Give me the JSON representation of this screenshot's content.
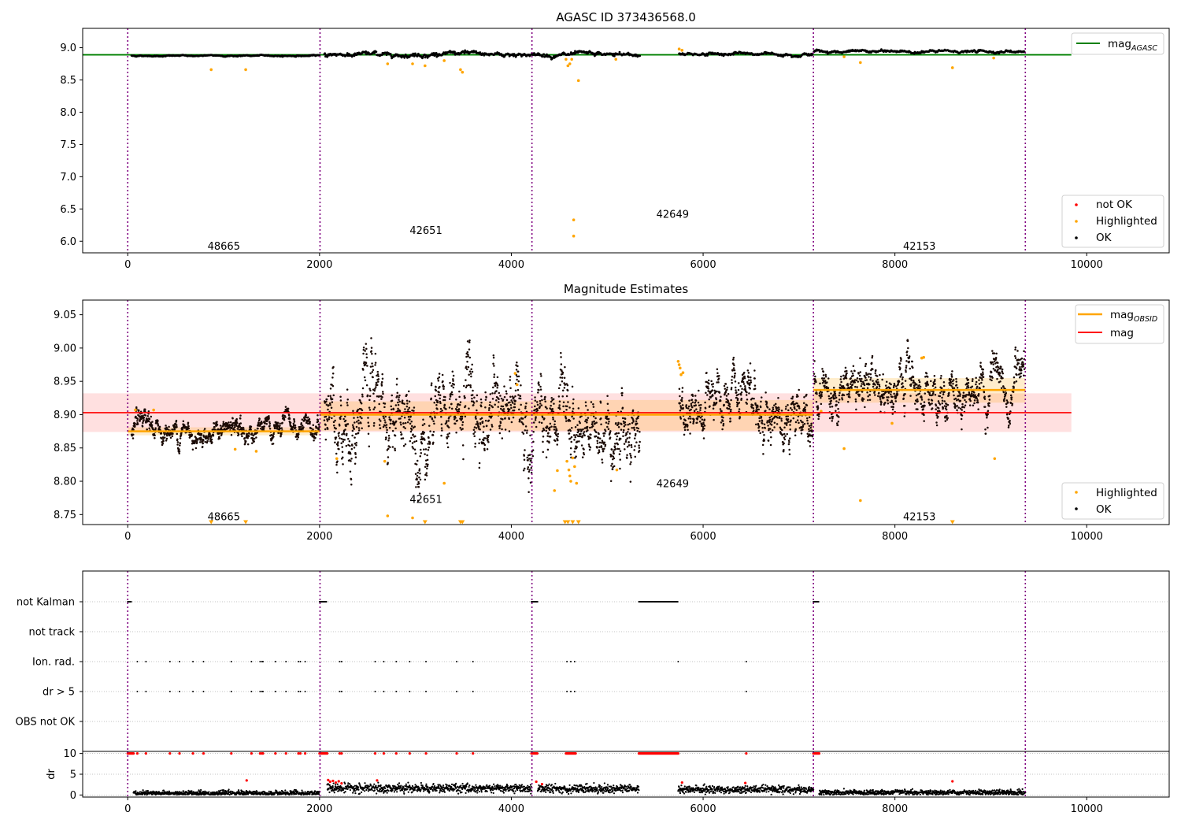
{
  "chart_data": [
    {
      "type": "scatter",
      "title": "AGASC ID 373436568.0",
      "xlabel": "",
      "ylabel": "",
      "xlim": [
        -470,
        10860
      ],
      "ylim": [
        5.82,
        9.3
      ],
      "xticks": [
        0,
        2000,
        4000,
        6000,
        8000,
        10000
      ],
      "xticklabels": [
        "0",
        "2000",
        "4000",
        "6000",
        "8000",
        "10000"
      ],
      "yticks": [
        6.0,
        6.5,
        7.0,
        7.5,
        8.0,
        8.5,
        9.0
      ],
      "yticklabels": [
        "6.0",
        "6.5",
        "7.0",
        "7.5",
        "8.0",
        "8.5",
        "9.0"
      ],
      "grid": false,
      "obsid_boundaries": [
        0,
        2005,
        4215,
        7150,
        9360
      ],
      "obsid_labels": [
        {
          "text": "48665",
          "x": 1002,
          "y": 5.92
        },
        {
          "text": "42651",
          "x": 3110,
          "y": 6.16
        },
        {
          "text": "42649",
          "x": 5682,
          "y": 6.41
        },
        {
          "text": "42153",
          "x": 8255,
          "y": 5.92
        }
      ],
      "reference_lines": [
        {
          "name": "mag_AGASC",
          "y": 8.89,
          "xrange": [
            -470,
            9840
          ],
          "color": "#008000"
        }
      ],
      "series": [
        {
          "name": "not OK",
          "color": "#ff0000",
          "points": []
        },
        {
          "name": "Highlighted",
          "color": "#ffa500",
          "points": [
            [
              870,
              8.66
            ],
            [
              1230,
              8.66
            ],
            [
              2710,
              8.75
            ],
            [
              2970,
              8.75
            ],
            [
              3100,
              8.72
            ],
            [
              3300,
              8.8
            ],
            [
              3470,
              8.66
            ],
            [
              3490,
              8.62
            ],
            [
              4570,
              8.82
            ],
            [
              4590,
              8.72
            ],
            [
              4610,
              8.75
            ],
            [
              4630,
              8.82
            ],
            [
              4650,
              6.33
            ],
            [
              4650,
              6.08
            ],
            [
              4700,
              8.49
            ],
            [
              5090,
              8.82
            ],
            [
              5750,
              8.98
            ],
            [
              5780,
              8.96
            ],
            [
              7470,
              8.86
            ],
            [
              7640,
              8.77
            ],
            [
              8600,
              8.69
            ],
            [
              9030,
              8.84
            ]
          ]
        },
        {
          "name": "OK",
          "color": "#000000",
          "segments": [
            {
              "x0": 40,
              "x1": 2000,
              "mean": 8.875,
              "sd": 0.006
            },
            {
              "x0": 2050,
              "x1": 4215,
              "mean": 8.9,
              "sd": 0.022
            },
            {
              "x0": 4225,
              "x1": 5340,
              "mean": 8.885,
              "sd": 0.02
            },
            {
              "x0": 5750,
              "x1": 7140,
              "mean": 8.905,
              "sd": 0.015
            },
            {
              "x0": 7155,
              "x1": 9350,
              "mean": 8.94,
              "sd": 0.013
            }
          ]
        }
      ],
      "legend": {
        "placement": [
          "upper-right",
          "lower-right"
        ],
        "entries": [
          "mag",
          "AGASC",
          "not OK",
          "Highlighted",
          "OK"
        ]
      }
    },
    {
      "type": "scatter",
      "title": "Magnitude Estimates",
      "xlabel": "",
      "ylabel": "",
      "xlim": [
        -470,
        10860
      ],
      "ylim": [
        8.735,
        9.072
      ],
      "xticks": [
        0,
        2000,
        4000,
        6000,
        8000,
        10000
      ],
      "xticklabels": [
        "0",
        "2000",
        "4000",
        "6000",
        "8000",
        "10000"
      ],
      "yticks": [
        8.75,
        8.8,
        8.85,
        8.9,
        8.95,
        9.0,
        9.05
      ],
      "yticklabels": [
        "8.75",
        "8.80",
        "8.85",
        "8.90",
        "8.95",
        "9.00",
        "9.05"
      ],
      "grid": false,
      "obsid_boundaries": [
        0,
        2005,
        4215,
        7150,
        9360
      ],
      "obsid_labels": [
        {
          "text": "48665",
          "x": 1002,
          "y": 8.746
        },
        {
          "text": "42651",
          "x": 3110,
          "y": 8.772
        },
        {
          "text": "42649",
          "x": 5682,
          "y": 8.796
        },
        {
          "text": "42153",
          "x": 8255,
          "y": 8.746
        }
      ],
      "mag": {
        "value": 8.903,
        "band": [
          8.874,
          8.932
        ],
        "xrange": [
          -470,
          9840
        ],
        "color": "#ff0000"
      },
      "mag_obsid": [
        {
          "x0": 0,
          "x1": 2005,
          "value": 8.875,
          "band": [
            8.869,
            8.881
          ]
        },
        {
          "x0": 2005,
          "x1": 4215,
          "value": 8.9,
          "band": [
            8.876,
            8.92
          ]
        },
        {
          "x0": 4215,
          "x1": 7150,
          "value": 8.9,
          "band": [
            8.876,
            8.922
          ]
        },
        {
          "x0": 7150,
          "x1": 9360,
          "value": 8.937,
          "band": [
            8.918,
            8.955
          ]
        }
      ],
      "series": [
        {
          "name": "Highlighted",
          "color": "#ffa500",
          "points": [
            [
              80,
              8.907
            ],
            [
              270,
              8.907
            ],
            [
              1120,
              8.848
            ],
            [
              1340,
              8.845
            ],
            [
              2180,
              8.834
            ],
            [
              2680,
              8.83
            ],
            [
              2710,
              8.748
            ],
            [
              2970,
              8.745
            ],
            [
              3300,
              8.797
            ],
            [
              4040,
              8.962
            ],
            [
              4060,
              8.945
            ],
            [
              4450,
              8.786
            ],
            [
              4480,
              8.816
            ],
            [
              4580,
              8.83
            ],
            [
              4600,
              8.817
            ],
            [
              4610,
              8.808
            ],
            [
              4620,
              8.8
            ],
            [
              4640,
              8.835
            ],
            [
              4660,
              8.822
            ],
            [
              4680,
              8.797
            ],
            [
              5100,
              8.817
            ],
            [
              5740,
              8.98
            ],
            [
              5750,
              8.975
            ],
            [
              5760,
              8.97
            ],
            [
              5770,
              8.96
            ],
            [
              5790,
              8.963
            ],
            [
              7230,
              8.905
            ],
            [
              7470,
              8.849
            ],
            [
              7640,
              8.771
            ],
            [
              7970,
              8.887
            ],
            [
              8280,
              8.985
            ],
            [
              8300,
              8.986
            ],
            [
              9040,
              8.834
            ]
          ]
        },
        {
          "name": "Highlighted (below range)",
          "color": "#ffa500",
          "marker": "triangle-down",
          "points": [
            [
              870,
              8.738
            ],
            [
              1230,
              8.738
            ],
            [
              3100,
              8.738
            ],
            [
              3470,
              8.738
            ],
            [
              3490,
              8.738
            ],
            [
              4560,
              8.738
            ],
            [
              4590,
              8.738
            ],
            [
              4640,
              8.738
            ],
            [
              4700,
              8.738
            ],
            [
              8600,
              8.738
            ]
          ]
        },
        {
          "name": "OK",
          "color": "#000000",
          "segments": [
            {
              "x0": 40,
              "x1": 2000,
              "mean": 8.875,
              "sd": 0.006
            },
            {
              "x0": 2050,
              "x1": 4215,
              "mean": 8.9,
              "sd": 0.022
            },
            {
              "x0": 4225,
              "x1": 5340,
              "mean": 8.885,
              "sd": 0.02
            },
            {
              "x0": 5750,
              "x1": 7140,
              "mean": 8.905,
              "sd": 0.015
            },
            {
              "x0": 7155,
              "x1": 9350,
              "mean": 8.94,
              "sd": 0.013
            }
          ]
        }
      ],
      "legend": {
        "placement": [
          "upper-right",
          "lower-right"
        ],
        "entries": [
          "mag",
          "OBSID",
          "mag",
          "Highlighted",
          "OK"
        ]
      }
    },
    {
      "type": "scatter",
      "title": "",
      "xlabel": "",
      "ylabel": "",
      "xlim": [
        -470,
        10860
      ],
      "categories": [
        "not Kalman",
        "not track",
        "Ion. rad.",
        "dr > 5",
        "OBS not OK"
      ],
      "grid": true,
      "obsid_boundaries": [
        0,
        2005,
        4215,
        7150,
        9360
      ],
      "flag_points": {
        "not Kalman": [
          [
            0,
            40
          ],
          [
            2000,
            2080
          ],
          [
            4210,
            4275
          ],
          [
            5330,
            5740
          ],
          [
            7150,
            7210
          ]
        ],
        "not track": [],
        "Ion. rad.": [
          100,
          190,
          440,
          540,
          680,
          790,
          1080,
          1290,
          1380,
          1400,
          1410,
          1540,
          1650,
          1780,
          1800,
          1850,
          2210,
          2230,
          2580,
          2670,
          2800,
          2940,
          3110,
          3430,
          3600,
          4580,
          4620,
          4660,
          5740,
          6450
        ],
        "dr > 5": [
          100,
          190,
          440,
          540,
          680,
          790,
          1080,
          1290,
          1380,
          1400,
          1410,
          1540,
          1650,
          1780,
          1800,
          1850,
          2210,
          2230,
          2580,
          2670,
          2800,
          2940,
          3110,
          3430,
          3600,
          4580,
          4620,
          4660,
          6450
        ],
        "OBS not OK": []
      }
    },
    {
      "type": "scatter",
      "title": "",
      "xlabel": "",
      "ylabel": "dr",
      "xlim": [
        -470,
        10860
      ],
      "ylim": [
        -0.5,
        10.5
      ],
      "yticks": [
        0,
        5,
        10
      ],
      "yticklabels": [
        "0",
        "5",
        "10"
      ],
      "grid": true,
      "series": [
        {
          "name": "dr clipped",
          "color": "#ff0000",
          "value": 10,
          "x_ranges": [
            [
              0,
              60
            ],
            [
              2000,
              2080
            ],
            [
              4210,
              4275
            ],
            [
              4570,
              4670
            ],
            [
              5330,
              5740
            ],
            [
              7150,
              7210
            ]
          ],
          "x_points": [
            100,
            190,
            440,
            540,
            680,
            790,
            1080,
            1290,
            1380,
            1400,
            1410,
            1540,
            1650,
            1780,
            1800,
            1850,
            2210,
            2230,
            2580,
            2670,
            2800,
            2940,
            3110,
            3430,
            3600,
            6450
          ]
        },
        {
          "name": "dr (red)",
          "color": "#ff0000",
          "points": [
            [
              1240,
              3.5
            ],
            [
              2090,
              3.6
            ],
            [
              2110,
              3.2
            ],
            [
              2140,
              3.4
            ],
            [
              2170,
              3.0
            ],
            [
              2200,
              3.3
            ],
            [
              2230,
              2.8
            ],
            [
              2600,
              3.5
            ],
            [
              4260,
              3.2
            ],
            [
              4320,
              2.6
            ],
            [
              5780,
              3.0
            ],
            [
              6440,
              2.9
            ],
            [
              8600,
              3.3
            ]
          ]
        },
        {
          "name": "dr",
          "color": "#000000",
          "segments": [
            {
              "x0": 60,
              "x1": 2000,
              "mean": 0.45,
              "sd": 0.28
            },
            {
              "x0": 2080,
              "x1": 4210,
              "mean": 1.6,
              "sd": 0.5
            },
            {
              "x0": 4275,
              "x1": 5330,
              "mean": 1.5,
              "sd": 0.5
            },
            {
              "x0": 5740,
              "x1": 7150,
              "mean": 1.3,
              "sd": 0.45
            },
            {
              "x0": 7210,
              "x1": 9360,
              "mean": 0.6,
              "sd": 0.3
            }
          ]
        }
      ]
    }
  ]
}
